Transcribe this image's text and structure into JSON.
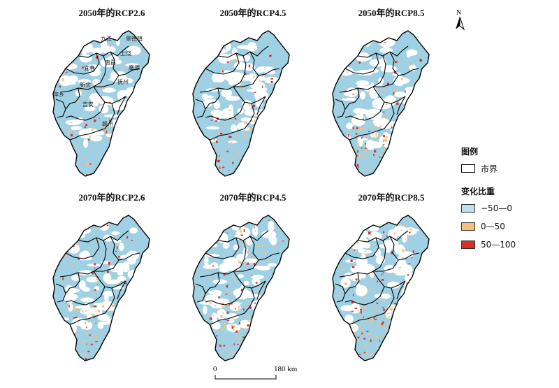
{
  "panels": [
    {
      "title": "2050年的RCP2.6",
      "labels": true
    },
    {
      "title": "2050年的RCP4.5",
      "labels": false
    },
    {
      "title": "2050年的RCP8.5",
      "labels": false
    },
    {
      "title": "2070年的RCP2.6",
      "labels": false
    },
    {
      "title": "2070年的RCP4.5",
      "labels": false
    },
    {
      "title": "2070年的RCP8.5",
      "labels": false
    }
  ],
  "city_labels": [
    "九江",
    "景德镇",
    "上饶",
    "南昌",
    "宜春",
    "鹰潭",
    "萍乡",
    "新余",
    "抚州",
    "吉安",
    "赣州"
  ],
  "north_arrow": "N",
  "legend": {
    "boundary_title": "图例",
    "boundary_label": "市界",
    "change_title": "变化比重",
    "classes": [
      {
        "label": "−50—0",
        "color": "#bfe0ef"
      },
      {
        "label": "0—50",
        "color": "#f5c27e"
      },
      {
        "label": "50—100",
        "color": "#d73027"
      }
    ]
  },
  "scalebar": {
    "start": "0",
    "end": "180 km"
  }
}
